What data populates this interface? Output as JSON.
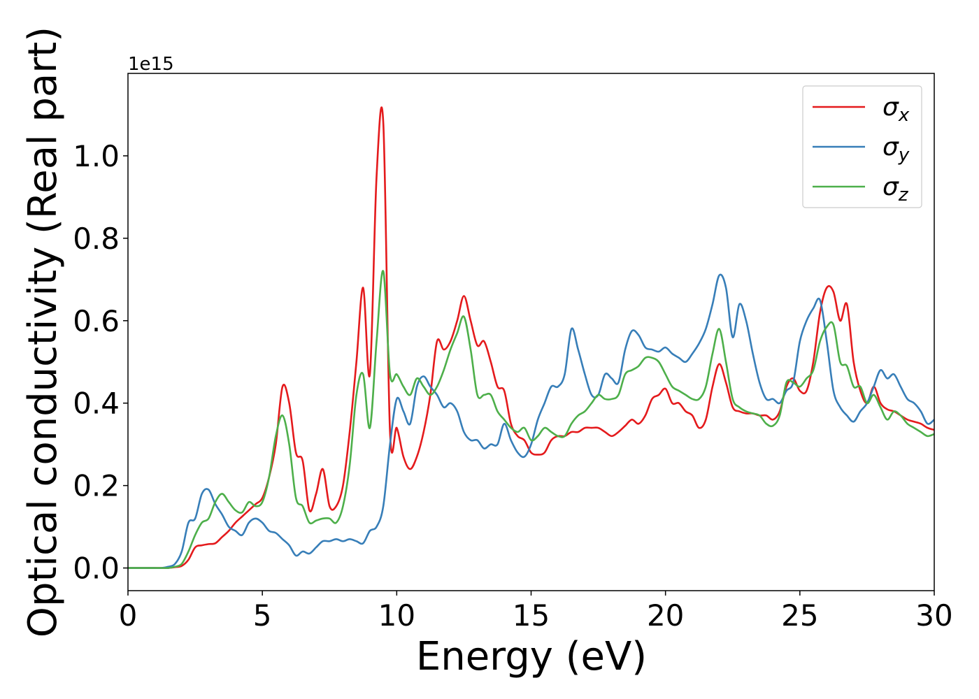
{
  "chart_data": {
    "type": "line",
    "xlabel": "Energy (eV)",
    "ylabel": "Optical conductivity (Real part)",
    "y_offset_label": "1e15",
    "xlim": [
      0,
      30
    ],
    "ylim": [
      -0.055,
      1.2
    ],
    "xticks": [
      0,
      5,
      10,
      15,
      20,
      25,
      30
    ],
    "yticks": [
      {
        "value": 0,
        "label": "0.0"
      },
      0.2,
      0.4,
      0.6,
      0.8,
      {
        "value": 1,
        "label": "1.0"
      }
    ],
    "legend": "upper right",
    "x": [
      0,
      0.25,
      0.5,
      0.75,
      1,
      1.25,
      1.5,
      1.75,
      2,
      2.25,
      2.5,
      2.75,
      3,
      3.25,
      3.5,
      3.75,
      4,
      4.25,
      4.5,
      4.75,
      5,
      5.25,
      5.5,
      5.75,
      6,
      6.25,
      6.5,
      6.75,
      7,
      7.25,
      7.5,
      7.75,
      8,
      8.25,
      8.5,
      8.75,
      9,
      9.25,
      9.5,
      9.75,
      10,
      10.25,
      10.5,
      10.75,
      11,
      11.25,
      11.5,
      11.75,
      12,
      12.25,
      12.5,
      12.75,
      13,
      13.25,
      13.5,
      13.75,
      14,
      14.25,
      14.5,
      14.75,
      15,
      15.25,
      15.5,
      15.75,
      16,
      16.25,
      16.5,
      16.75,
      17,
      17.25,
      17.5,
      17.75,
      18,
      18.25,
      18.5,
      18.75,
      19,
      19.25,
      19.5,
      19.75,
      20,
      20.25,
      20.5,
      20.75,
      21,
      21.25,
      21.5,
      21.75,
      22,
      22.25,
      22.5,
      22.75,
      23,
      23.25,
      23.5,
      23.75,
      24,
      24.25,
      24.5,
      24.75,
      25,
      25.25,
      25.5,
      25.75,
      26,
      26.25,
      26.5,
      26.75,
      27,
      27.25,
      27.5,
      27.75,
      28,
      28.25,
      28.5,
      28.75,
      29,
      29.25,
      29.5,
      29.75,
      30
    ],
    "series": [
      {
        "name": "σx",
        "color": "#e41a1c",
        "values": [
          0,
          0,
          0,
          0,
          0,
          0,
          0,
          0.002,
          0.005,
          0.02,
          0.05,
          0.055,
          0.058,
          0.06,
          0.075,
          0.09,
          0.11,
          0.125,
          0.14,
          0.155,
          0.17,
          0.22,
          0.3,
          0.44,
          0.4,
          0.28,
          0.26,
          0.14,
          0.18,
          0.24,
          0.15,
          0.15,
          0.2,
          0.33,
          0.5,
          0.68,
          0.47,
          0.95,
          1.08,
          0.33,
          0.34,
          0.27,
          0.24,
          0.27,
          0.33,
          0.42,
          0.55,
          0.53,
          0.55,
          0.6,
          0.66,
          0.6,
          0.54,
          0.55,
          0.5,
          0.44,
          0.43,
          0.35,
          0.32,
          0.31,
          0.28,
          0.275,
          0.28,
          0.31,
          0.32,
          0.32,
          0.33,
          0.33,
          0.34,
          0.34,
          0.34,
          0.33,
          0.32,
          0.33,
          0.345,
          0.36,
          0.35,
          0.37,
          0.41,
          0.42,
          0.435,
          0.4,
          0.4,
          0.38,
          0.37,
          0.34,
          0.36,
          0.44,
          0.495,
          0.45,
          0.39,
          0.38,
          0.375,
          0.375,
          0.37,
          0.37,
          0.36,
          0.38,
          0.44,
          0.46,
          0.43,
          0.43,
          0.5,
          0.62,
          0.68,
          0.67,
          0.6,
          0.64,
          0.5,
          0.43,
          0.4,
          0.44,
          0.4,
          0.385,
          0.38,
          0.37,
          0.36,
          0.355,
          0.35,
          0.34,
          0.335
        ]
      },
      {
        "name": "σy",
        "color": "#377eb8",
        "values": [
          0,
          0,
          0,
          0,
          0,
          0,
          0.003,
          0.01,
          0.04,
          0.11,
          0.12,
          0.18,
          0.19,
          0.155,
          0.13,
          0.1,
          0.09,
          0.08,
          0.11,
          0.12,
          0.11,
          0.09,
          0.085,
          0.07,
          0.055,
          0.03,
          0.04,
          0.035,
          0.05,
          0.065,
          0.065,
          0.07,
          0.065,
          0.07,
          0.065,
          0.06,
          0.09,
          0.1,
          0.15,
          0.3,
          0.41,
          0.38,
          0.35,
          0.44,
          0.465,
          0.44,
          0.42,
          0.39,
          0.4,
          0.38,
          0.33,
          0.31,
          0.31,
          0.29,
          0.3,
          0.3,
          0.35,
          0.31,
          0.28,
          0.27,
          0.3,
          0.36,
          0.4,
          0.44,
          0.44,
          0.47,
          0.58,
          0.53,
          0.47,
          0.42,
          0.42,
          0.47,
          0.46,
          0.45,
          0.53,
          0.575,
          0.565,
          0.535,
          0.53,
          0.525,
          0.535,
          0.52,
          0.51,
          0.5,
          0.52,
          0.545,
          0.58,
          0.64,
          0.71,
          0.68,
          0.56,
          0.64,
          0.6,
          0.52,
          0.45,
          0.41,
          0.41,
          0.4,
          0.43,
          0.45,
          0.55,
          0.6,
          0.63,
          0.65,
          0.55,
          0.43,
          0.39,
          0.37,
          0.355,
          0.38,
          0.4,
          0.44,
          0.48,
          0.46,
          0.47,
          0.44,
          0.41,
          0.4,
          0.38,
          0.35,
          0.36
        ]
      },
      {
        "name": "σz",
        "color": "#4daf4a",
        "values": [
          0,
          0,
          0,
          0,
          0,
          0,
          0,
          0.003,
          0.01,
          0.04,
          0.08,
          0.11,
          0.12,
          0.16,
          0.18,
          0.16,
          0.14,
          0.135,
          0.16,
          0.15,
          0.16,
          0.22,
          0.32,
          0.37,
          0.3,
          0.17,
          0.15,
          0.11,
          0.115,
          0.12,
          0.12,
          0.11,
          0.15,
          0.25,
          0.42,
          0.47,
          0.34,
          0.55,
          0.72,
          0.47,
          0.47,
          0.44,
          0.42,
          0.46,
          0.44,
          0.42,
          0.44,
          0.48,
          0.53,
          0.57,
          0.61,
          0.53,
          0.42,
          0.42,
          0.42,
          0.38,
          0.36,
          0.34,
          0.33,
          0.34,
          0.31,
          0.32,
          0.34,
          0.33,
          0.32,
          0.32,
          0.35,
          0.37,
          0.38,
          0.4,
          0.42,
          0.41,
          0.41,
          0.42,
          0.47,
          0.48,
          0.49,
          0.51,
          0.51,
          0.5,
          0.47,
          0.44,
          0.43,
          0.42,
          0.41,
          0.41,
          0.44,
          0.52,
          0.58,
          0.5,
          0.41,
          0.39,
          0.38,
          0.375,
          0.37,
          0.35,
          0.345,
          0.37,
          0.45,
          0.45,
          0.44,
          0.46,
          0.48,
          0.55,
          0.585,
          0.59,
          0.5,
          0.49,
          0.44,
          0.44,
          0.4,
          0.42,
          0.39,
          0.36,
          0.38,
          0.37,
          0.35,
          0.34,
          0.33,
          0.32,
          0.325
        ]
      }
    ]
  }
}
